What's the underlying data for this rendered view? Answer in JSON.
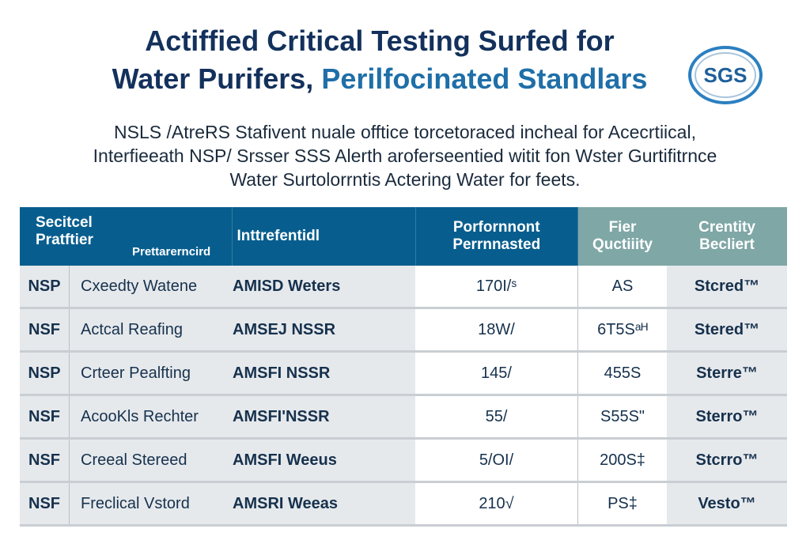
{
  "title": {
    "line1": "Actiffied Critical Testing Surfed for",
    "line2a": "Water Purifers, ",
    "line2b": "Perilfocinated Standlars"
  },
  "logo": {
    "text": "SGS"
  },
  "subtitle": [
    "NSLS /AtreRS Stafivent nuale offtice torcetoraced incheal for Acecrtiical,",
    "Interfieeath NSP/ Srsser SSS Alerth aroferseentied witit fon Wster Gurtifitrnce",
    "Water Surtolorrntis Actering Water for feets."
  ],
  "table": {
    "headers": {
      "col1": "Secitcel Pratftier",
      "col1_sub": "Prettarerncird",
      "col2": "Inttrefentidl",
      "col3": "Porfornnont Perrnnasted",
      "col4": "Fier Quctiiity",
      "col5": "Crentity Becliert"
    },
    "rows": [
      {
        "code": "NSP",
        "name": "Cxeedty Watene",
        "std": "AMISD Weters",
        "perf": "170I/ˢ",
        "qual": "AS",
        "cert": "Stcred™"
      },
      {
        "code": "NSF",
        "name": "Actcal Reafing",
        "std": "AMSEJ NSSR",
        "perf": "18W/",
        "qual": "6T5Sᵃᴴ",
        "cert": "Stered™"
      },
      {
        "code": "NSP",
        "name": "Crteer Pealfting",
        "std": "AMSFI NSSR",
        "perf": "145/",
        "qual": "455S",
        "cert": "Sterre™"
      },
      {
        "code": "NSF",
        "name": "AcooKls Rechter",
        "std": "AMSFI'NSSR",
        "perf": "55/",
        "qual": "S55S\"",
        "cert": "Sterro™"
      },
      {
        "code": "NSF",
        "name": "Creeal Stereed",
        "std": "AMSFI Weeus",
        "perf": "5/OI/",
        "qual": "200S‡",
        "cert": "Stcrro™"
      },
      {
        "code": "NSF",
        "name": "Freclical Vstord",
        "std": "AMSRI Weeas",
        "perf": "210√",
        "qual": "PS‡",
        "cert": "Vesto™"
      }
    ]
  }
}
